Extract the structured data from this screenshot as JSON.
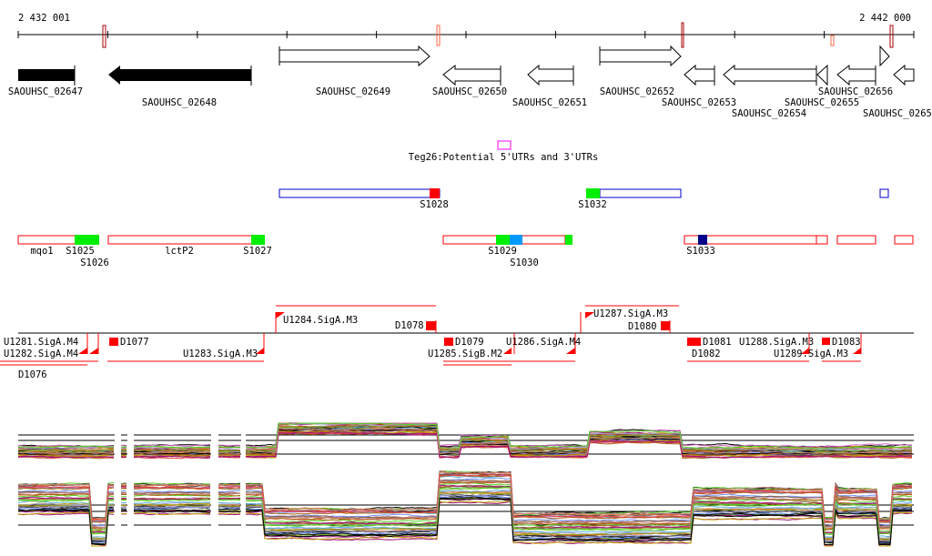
{
  "ruler": {
    "start_label": "2 432 001",
    "end_label": "2 442 000"
  },
  "genes": [
    {
      "id": "SAOUHSC_02647",
      "strand": "-",
      "style": "filled"
    },
    {
      "id": "SAOUHSC_02648",
      "strand": "-",
      "style": "filled"
    },
    {
      "id": "SAOUHSC_02649",
      "strand": "+",
      "style": "outline"
    },
    {
      "id": "SAOUHSC_02650",
      "strand": "-",
      "style": "outline"
    },
    {
      "id": "SAOUHSC_02651",
      "strand": "-",
      "style": "outline"
    },
    {
      "id": "SAOUHSC_02652",
      "strand": "+",
      "style": "outline"
    },
    {
      "id": "SAOUHSC_02653",
      "strand": "-",
      "style": "outline"
    },
    {
      "id": "SAOUHSC_02654",
      "strand": "-",
      "style": "outline"
    },
    {
      "id": "SAOUHSC_02655",
      "strand": "-",
      "style": "outline"
    },
    {
      "id": "SAOUHSC_02656",
      "strand": "-",
      "style": "outline"
    },
    {
      "id": "SAOUHSC_0265",
      "strand": "+",
      "style": "outline"
    }
  ],
  "teg": {
    "label": "Teg26:Potential 5'UTRs and 3'UTRs",
    "color": "#ff00ff"
  },
  "s_features": {
    "row1": [
      "S1028",
      "S1032"
    ],
    "row2": [
      "mqo1",
      "S1025",
      "S1026",
      "lctP2",
      "S1027",
      "S1029",
      "S1030",
      "S1033"
    ]
  },
  "transcripts": {
    "labels": [
      "U1281.SigA.M4",
      "U1282.SigA.M4",
      "D1076",
      "D1077",
      "U1283.SigA.M3",
      "U1284.SigA.M3",
      "D1078",
      "D1079",
      "U1285.SigB.M2",
      "U1286.SigA.M4",
      "U1287.SigA.M3",
      "D1080",
      "D1081",
      "D1082",
      "U1288.SigA.M3",
      "U1289.SigA.M3",
      "D1083"
    ]
  },
  "colors": {
    "utr": "#ff0000",
    "sigma_green": "#00ee00",
    "sigma_blue": "#0099ff",
    "sigma_navy": "#000088",
    "operon_blue": "#0000cc"
  }
}
